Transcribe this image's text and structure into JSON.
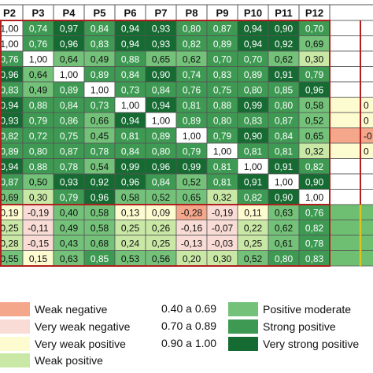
{
  "chart_data": {
    "type": "heatmap",
    "title": "",
    "columns": [
      "P2",
      "P3",
      "P4",
      "P5",
      "P6",
      "P7",
      "P8",
      "P9",
      "P10",
      "P11",
      "P12"
    ],
    "rows": [
      [
        "1,00",
        "0,74",
        "0,97",
        "0,84",
        "0,94",
        "0,93",
        "0,80",
        "0,87",
        "0,94",
        "0,90",
        "0,70"
      ],
      [
        "1,00",
        "0,76",
        "0,96",
        "0,83",
        "0,94",
        "0,93",
        "0,82",
        "0,89",
        "0,94",
        "0,92",
        "0,69"
      ],
      [
        "0,76",
        "1,00",
        "0,64",
        "0,49",
        "0,88",
        "0,65",
        "0,62",
        "0,70",
        "0,70",
        "0,62",
        "0,30"
      ],
      [
        "0,96",
        "0,64",
        "1,00",
        "0,89",
        "0,84",
        "0,90",
        "0,74",
        "0,83",
        "0,89",
        "0,91",
        "0,79"
      ],
      [
        "0,83",
        "0,49",
        "0,89",
        "1,00",
        "0,73",
        "0,84",
        "0,76",
        "0,75",
        "0,80",
        "0,85",
        "0,96"
      ],
      [
        "0,94",
        "0,88",
        "0,84",
        "0,73",
        "1,00",
        "0,94",
        "0,81",
        "0,88",
        "0,99",
        "0,80",
        "0,58"
      ],
      [
        "0,93",
        "0,79",
        "0,86",
        "0,66",
        "0,94",
        "1,00",
        "0,89",
        "0,80",
        "0,83",
        "0,87",
        "0,52"
      ],
      [
        "0,82",
        "0,72",
        "0,75",
        "0,45",
        "0,81",
        "0,89",
        "1,00",
        "0,79",
        "0,90",
        "0,84",
        "0,65"
      ],
      [
        "0,89",
        "0,80",
        "0,87",
        "0,78",
        "0,84",
        "0,80",
        "0,79",
        "1,00",
        "0,81",
        "0,81",
        "0,32"
      ],
      [
        "0,94",
        "0,88",
        "0,78",
        "0,54",
        "0,99",
        "0,96",
        "0,99",
        "0,81",
        "1,00",
        "0,91",
        "0,82"
      ],
      [
        "0,87",
        "0,50",
        "0,93",
        "0,92",
        "0,96",
        "0,84",
        "0,52",
        "0,81",
        "0,91",
        "1,00",
        "0,90"
      ],
      [
        "0,69",
        "0,30",
        "0,79",
        "0,96",
        "0,58",
        "0,52",
        "0,65",
        "0,32",
        "0,82",
        "0,90",
        "1,00"
      ],
      [
        "0,19",
        "-0,19",
        "0,40",
        "0,58",
        "0,13",
        "0,09",
        "-0,28",
        "-0,19",
        "0,11",
        "0,63",
        "0,76"
      ],
      [
        "0,25",
        "-0,11",
        "0,49",
        "0,58",
        "0,25",
        "0,26",
        "-0,16",
        "-0,07",
        "0,22",
        "0,62",
        "0,82"
      ],
      [
        "0,28",
        "-0,15",
        "0,43",
        "0,68",
        "0,24",
        "0,25",
        "-0,13",
        "-0,03",
        "0,25",
        "0,61",
        "0,78"
      ],
      [
        "0,55",
        "0,15",
        "0,63",
        "0,85",
        "0,53",
        "0,56",
        "0,20",
        "0,30",
        "0,52",
        "0,80",
        "0,83"
      ]
    ],
    "right_edge_cells": [
      "",
      "",
      "",
      "",
      "",
      "0",
      "0",
      "-0",
      "0",
      "",
      "",
      "",
      "",
      "",
      "",
      ""
    ],
    "legend": [
      {
        "label": "Weak negative",
        "color": "#f5a78c"
      },
      {
        "label": "Very weak negative",
        "color": "#fadcd6"
      },
      {
        "label": "Very weak positive",
        "color": "#fdfbd0"
      },
      {
        "label": "Weak positive",
        "color": "#c9e8a6"
      },
      {
        "label": "Positive moderate",
        "color": "#74c27a"
      },
      {
        "label": "Strong positive",
        "color": "#3e9a53"
      },
      {
        "label": "Very strong positive",
        "color": "#166b32"
      }
    ],
    "ranges": [
      "0.40 a 0.69",
      "0.70 a 0.89",
      "0.90 a 1.00"
    ],
    "grid": true,
    "highlight_color": "#b01e1e",
    "highlight_color_secondary": "#e0c31a"
  }
}
